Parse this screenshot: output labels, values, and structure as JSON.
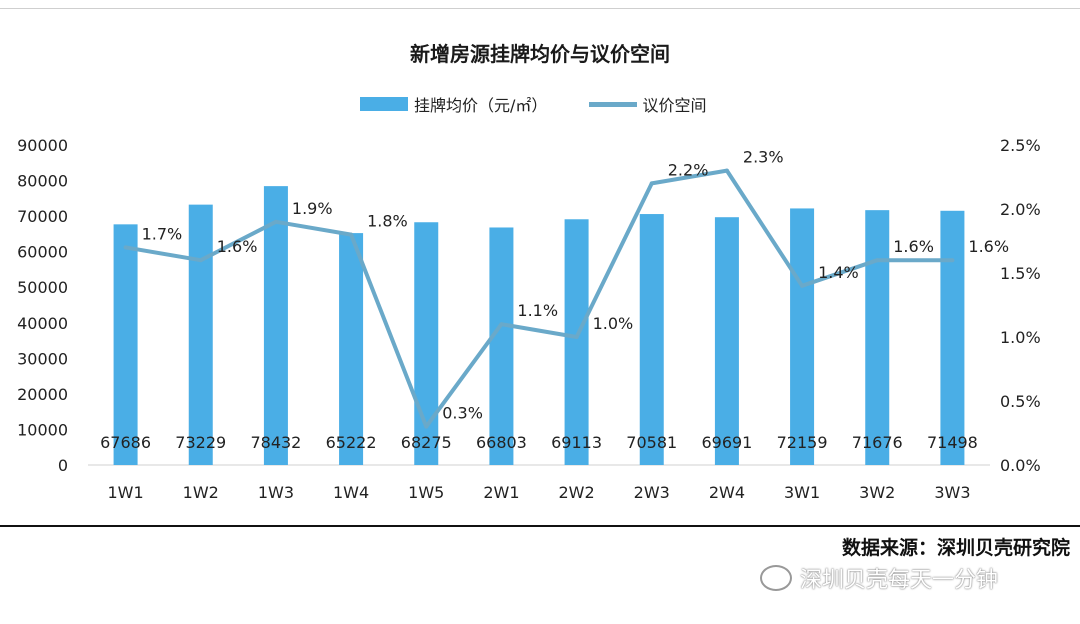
{
  "chart_data": {
    "type": "bar",
    "title": "新增房源挂牌均价与议价空间",
    "categories": [
      "1W1",
      "1W2",
      "1W3",
      "1W4",
      "1W5",
      "2W1",
      "2W2",
      "2W3",
      "2W4",
      "3W1",
      "3W2",
      "3W3"
    ],
    "series": [
      {
        "name": "挂牌均价（元/㎡）",
        "type": "bar",
        "axis": "left",
        "color": "#4aaee6",
        "values": [
          67686,
          73229,
          78432,
          65222,
          68275,
          66803,
          69113,
          70581,
          69691,
          72159,
          71676,
          71498
        ],
        "labels": [
          "67686",
          "73229",
          "78432",
          "65222",
          "68275",
          "66803",
          "69113",
          "70581",
          "69691",
          "72159",
          "71676",
          "71498"
        ]
      },
      {
        "name": "议价空间",
        "type": "line",
        "axis": "right",
        "color": "#6aa9c9",
        "values": [
          1.7,
          1.6,
          1.9,
          1.8,
          0.3,
          1.1,
          1.0,
          2.2,
          2.3,
          1.4,
          1.6,
          1.6
        ],
        "labels": [
          "1.7%",
          "1.6%",
          "1.9%",
          "1.8%",
          "0.3%",
          "1.1%",
          "1.0%",
          "2.2%",
          "2.3%",
          "1.4%",
          "1.6%",
          "1.6%"
        ]
      }
    ],
    "y_left": {
      "min": 0,
      "max": 90000,
      "ticks": [
        "0",
        "10000",
        "20000",
        "30000",
        "40000",
        "50000",
        "60000",
        "70000",
        "80000",
        "90000"
      ]
    },
    "y_right": {
      "min": 0,
      "max": 2.5,
      "ticks": [
        "0.0%",
        "0.5%",
        "1.0%",
        "1.5%",
        "2.0%",
        "2.5%"
      ]
    },
    "grid": false,
    "legend": "top-center"
  },
  "footer": {
    "source": "数据来源：深圳贝壳研究院",
    "watermark": "深圳贝壳每天一分钟"
  }
}
